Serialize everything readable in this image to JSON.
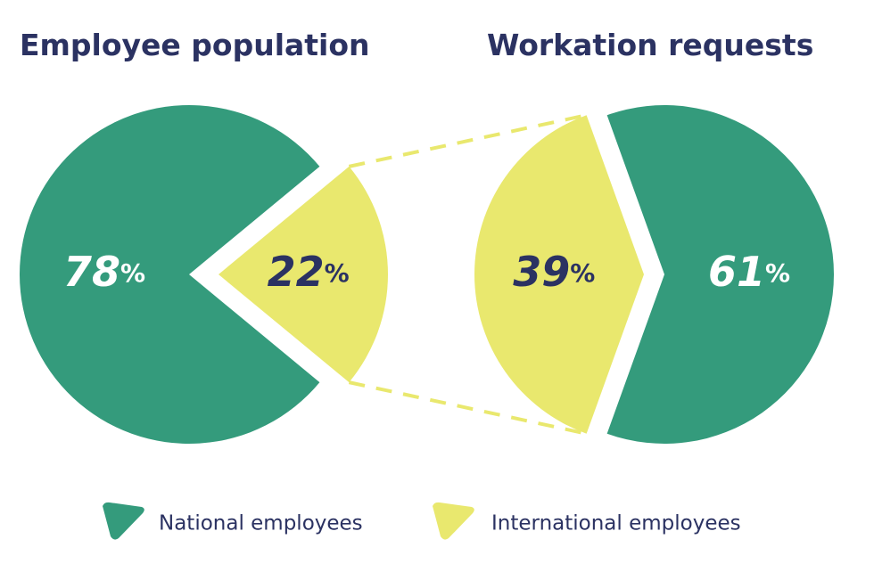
{
  "chart_data": [
    {
      "type": "pie",
      "title": "Employee population",
      "categories": [
        "National employees",
        "International employees"
      ],
      "values": [
        78,
        22
      ],
      "value_labels": [
        "78%",
        "22%"
      ],
      "colors": [
        "#349b7c",
        "#e9e86e"
      ]
    },
    {
      "type": "pie",
      "title": "Workation requests",
      "categories": [
        "National employees",
        "International employees"
      ],
      "values": [
        61,
        39
      ],
      "value_labels": [
        "61%",
        "39%"
      ],
      "colors": [
        "#349b7c",
        "#e9e86e"
      ]
    }
  ]
}
